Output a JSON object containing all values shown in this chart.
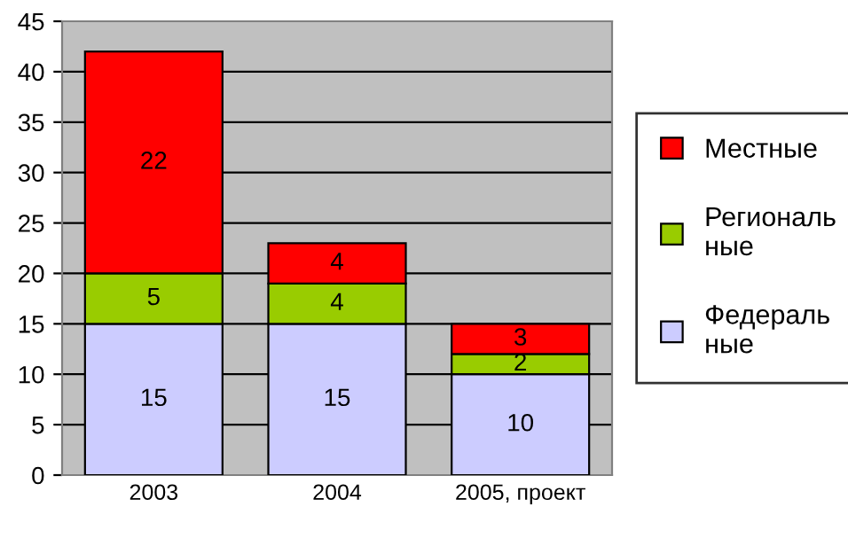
{
  "chart_data": {
    "type": "bar",
    "stacked": true,
    "categories": [
      "2003",
      "2004",
      "2005, проект"
    ],
    "series": [
      {
        "name": "Федераль\nные",
        "color": "#ccccff",
        "values": [
          15,
          15,
          10
        ]
      },
      {
        "name": "Региональ\nные",
        "color": "#99cc00",
        "values": [
          5,
          4,
          2
        ]
      },
      {
        "name": "Местные",
        "color": "#ff0000",
        "values": [
          22,
          4,
          3
        ]
      }
    ],
    "ylim": [
      0,
      45
    ],
    "yticks": [
      0,
      5,
      10,
      15,
      20,
      25,
      30,
      35,
      40,
      45
    ],
    "grid": "y",
    "legend": "right",
    "data_labels": true
  }
}
